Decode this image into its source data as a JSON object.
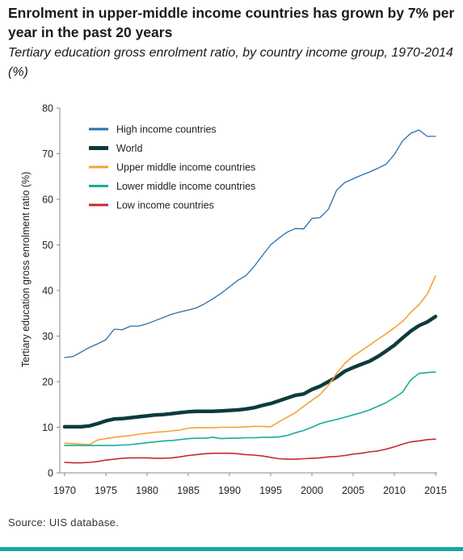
{
  "title": "Enrolment in upper-middle income countries has grown by 7% per year in the past 20 years",
  "subtitle": "Tertiary education gross enrolment ratio, by country income group, 1970-2014 (%)",
  "source": "Source: UIS database.",
  "chart_data": {
    "type": "line",
    "title": "",
    "xlabel": "",
    "ylabel": "Tertiary education gross enrolment ratio (%)",
    "xlim": [
      1970,
      2015
    ],
    "ylim": [
      0,
      80
    ],
    "x_ticks": [
      1970,
      1975,
      1980,
      1985,
      1990,
      1995,
      2000,
      2005,
      2010,
      2015
    ],
    "y_ticks": [
      0,
      10,
      20,
      30,
      40,
      50,
      60,
      70,
      80
    ],
    "grid": false,
    "legend_position": "top-left",
    "x": [
      1970,
      1971,
      1972,
      1973,
      1974,
      1975,
      1976,
      1977,
      1978,
      1979,
      1980,
      1981,
      1982,
      1983,
      1984,
      1985,
      1986,
      1987,
      1988,
      1989,
      1990,
      1991,
      1992,
      1993,
      1994,
      1995,
      1996,
      1997,
      1998,
      1999,
      2000,
      2001,
      2002,
      2003,
      2004,
      2005,
      2006,
      2007,
      2008,
      2009,
      2010,
      2011,
      2012,
      2013,
      2014,
      2015
    ],
    "series": [
      {
        "name": "High income countries",
        "color": "#2a6faa",
        "width": 1.3,
        "values": [
          25.3,
          25.5,
          26.5,
          27.5,
          28.3,
          29.2,
          31.5,
          31.4,
          32.2,
          32.2,
          32.7,
          33.4,
          34.1,
          34.8,
          35.3,
          35.7,
          36.2,
          37.1,
          38.2,
          39.4,
          40.8,
          42.2,
          43.3,
          45.3,
          47.7,
          50.0,
          51.5,
          52.8,
          53.6,
          53.5,
          55.8,
          56.0,
          57.8,
          62.0,
          63.7,
          64.5,
          65.3,
          66.0,
          66.8,
          67.7,
          69.8,
          72.8,
          74.5,
          75.2,
          73.8,
          73.8
        ]
      },
      {
        "name": "World",
        "color": "#0d3b3c",
        "width": 4.5,
        "values": [
          10.1,
          10.1,
          10.1,
          10.3,
          10.8,
          11.4,
          11.8,
          11.9,
          12.1,
          12.3,
          12.5,
          12.7,
          12.8,
          13.0,
          13.2,
          13.4,
          13.5,
          13.5,
          13.5,
          13.6,
          13.7,
          13.8,
          14.0,
          14.3,
          14.8,
          15.2,
          15.8,
          16.4,
          17.0,
          17.3,
          18.3,
          19.0,
          20.0,
          21.0,
          22.3,
          23.1,
          23.8,
          24.5,
          25.5,
          26.7,
          28.0,
          29.6,
          31.1,
          32.3,
          33.1,
          34.3
        ]
      },
      {
        "name": "Upper middle income countries",
        "color": "#f5a233",
        "width": 1.6,
        "values": [
          6.5,
          6.4,
          6.3,
          6.2,
          7.2,
          7.5,
          7.8,
          8.0,
          8.2,
          8.5,
          8.7,
          8.9,
          9.0,
          9.2,
          9.4,
          9.8,
          9.9,
          9.9,
          9.9,
          10.0,
          10.0,
          10.0,
          10.1,
          10.2,
          10.2,
          10.1,
          11.2,
          12.2,
          13.2,
          14.6,
          15.9,
          17.2,
          19.2,
          21.8,
          24.0,
          25.6,
          26.8,
          28.0,
          29.3,
          30.5,
          31.8,
          33.2,
          35.2,
          36.9,
          39.2,
          43.2
        ]
      },
      {
        "name": "Lower middle income countries",
        "color": "#17ad9a",
        "width": 1.6,
        "values": [
          6.0,
          6.0,
          6.0,
          6.0,
          6.0,
          6.0,
          6.0,
          6.1,
          6.2,
          6.4,
          6.6,
          6.8,
          7.0,
          7.1,
          7.3,
          7.5,
          7.6,
          7.6,
          7.8,
          7.5,
          7.6,
          7.6,
          7.7,
          7.7,
          7.8,
          7.8,
          7.9,
          8.2,
          8.8,
          9.3,
          10.0,
          10.8,
          11.3,
          11.7,
          12.2,
          12.7,
          13.2,
          13.8,
          14.6,
          15.4,
          16.5,
          17.7,
          20.4,
          21.8,
          22.0,
          22.1
        ]
      },
      {
        "name": "Low income countries",
        "color": "#c8282d",
        "width": 1.6,
        "values": [
          2.3,
          2.2,
          2.2,
          2.3,
          2.5,
          2.8,
          3.0,
          3.2,
          3.3,
          3.3,
          3.3,
          3.2,
          3.2,
          3.3,
          3.5,
          3.8,
          4.0,
          4.2,
          4.3,
          4.3,
          4.3,
          4.2,
          4.0,
          3.9,
          3.7,
          3.4,
          3.1,
          3.0,
          3.0,
          3.1,
          3.2,
          3.3,
          3.5,
          3.6,
          3.8,
          4.1,
          4.3,
          4.6,
          4.8,
          5.2,
          5.7,
          6.3,
          6.8,
          7.0,
          7.3,
          7.4
        ]
      }
    ]
  }
}
